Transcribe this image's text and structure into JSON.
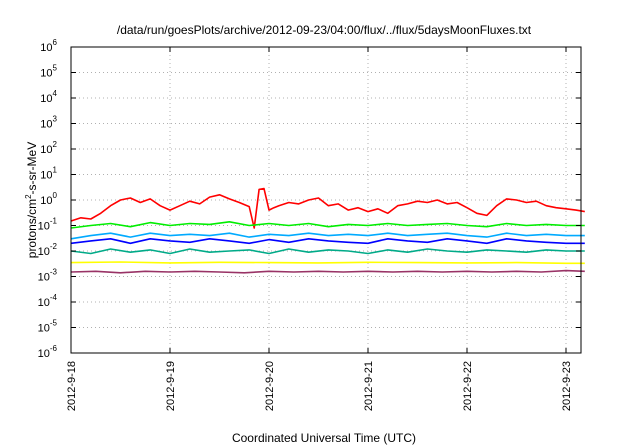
{
  "chart_data": {
    "type": "line",
    "title": "/data/run/goesPlots/archive/2012-09-23/04:00/flux/../flux/5daysMoonFluxes.txt",
    "xlabel": "Coordinated Universal Time (UTC)",
    "ylabel": "protons/cm2-s-sr-MeV",
    "ylabel_parts": {
      "before": "protons/cm",
      "sup": "2",
      "after": "-s-sr-MeV"
    },
    "y_scale": "log",
    "ylim": [
      1e-06,
      1000000.0
    ],
    "y_ticks": [
      {
        "value": 1e-06,
        "base": "10",
        "exp": "-6"
      },
      {
        "value": 1e-05,
        "base": "10",
        "exp": "-5"
      },
      {
        "value": 0.0001,
        "base": "10",
        "exp": "-4"
      },
      {
        "value": 0.001,
        "base": "10",
        "exp": "-3"
      },
      {
        "value": 0.01,
        "base": "10",
        "exp": "-2"
      },
      {
        "value": 0.1,
        "base": "10",
        "exp": "-1"
      },
      {
        "value": 1,
        "base": "10",
        "exp": "0"
      },
      {
        "value": 10,
        "base": "10",
        "exp": "1"
      },
      {
        "value": 100,
        "base": "10",
        "exp": "2"
      },
      {
        "value": 1000,
        "base": "10",
        "exp": "3"
      },
      {
        "value": 10000,
        "base": "10",
        "exp": "4"
      },
      {
        "value": 100000,
        "base": "10",
        "exp": "5"
      },
      {
        "value": 1000000,
        "base": "10",
        "exp": "6"
      }
    ],
    "x_ticks": [
      "2012-9-18",
      "2012-9-19",
      "2012-9-20",
      "2012-9-21",
      "2012-9-22",
      "2012-9-23"
    ],
    "xlim_days": [
      0,
      5.19
    ],
    "grid": true,
    "legend": "none",
    "series": [
      {
        "color": "#ff0000",
        "x": [
          0.0,
          0.1,
          0.2,
          0.3,
          0.4,
          0.5,
          0.6,
          0.7,
          0.8,
          0.9,
          1.0,
          1.1,
          1.2,
          1.3,
          1.4,
          1.5,
          1.6,
          1.7,
          1.8,
          1.85,
          1.9,
          1.95,
          2.0,
          2.05,
          2.1,
          2.2,
          2.3,
          2.4,
          2.5,
          2.6,
          2.7,
          2.8,
          2.9,
          3.0,
          3.1,
          3.2,
          3.3,
          3.4,
          3.5,
          3.6,
          3.7,
          3.8,
          3.9,
          4.0,
          4.1,
          4.2,
          4.3,
          4.4,
          4.5,
          4.6,
          4.7,
          4.8,
          4.9,
          5.0,
          5.1,
          5.19
        ],
        "y": [
          0.15,
          0.2,
          0.18,
          0.3,
          0.6,
          1.0,
          1.2,
          0.8,
          1.1,
          0.6,
          0.4,
          0.6,
          0.9,
          0.7,
          1.3,
          1.6,
          1.1,
          0.8,
          0.55,
          0.08,
          2.6,
          2.8,
          0.4,
          0.5,
          0.6,
          0.8,
          0.7,
          1.0,
          1.2,
          0.6,
          0.7,
          0.4,
          0.5,
          0.35,
          0.45,
          0.3,
          0.6,
          0.7,
          0.9,
          0.8,
          1.0,
          0.7,
          0.8,
          0.5,
          0.3,
          0.25,
          0.6,
          1.1,
          1.0,
          0.8,
          0.9,
          0.6,
          0.5,
          0.45,
          0.4,
          0.35
        ]
      },
      {
        "color": "#00ee00",
        "x": [
          0.0,
          0.2,
          0.4,
          0.6,
          0.8,
          1.0,
          1.2,
          1.4,
          1.6,
          1.8,
          2.0,
          2.2,
          2.4,
          2.6,
          2.8,
          3.0,
          3.2,
          3.4,
          3.6,
          3.8,
          4.0,
          4.2,
          4.4,
          4.6,
          4.8,
          5.0,
          5.19
        ],
        "y": [
          0.08,
          0.1,
          0.12,
          0.09,
          0.13,
          0.1,
          0.12,
          0.11,
          0.14,
          0.1,
          0.12,
          0.1,
          0.12,
          0.09,
          0.11,
          0.1,
          0.12,
          0.1,
          0.11,
          0.12,
          0.1,
          0.09,
          0.12,
          0.1,
          0.11,
          0.1,
          0.1
        ]
      },
      {
        "color": "#00aaff",
        "x": [
          0.0,
          0.2,
          0.4,
          0.6,
          0.8,
          1.0,
          1.2,
          1.4,
          1.6,
          1.8,
          2.0,
          2.2,
          2.4,
          2.6,
          2.8,
          3.0,
          3.2,
          3.4,
          3.6,
          3.8,
          4.0,
          4.2,
          4.4,
          4.6,
          4.8,
          5.0,
          5.19
        ],
        "y": [
          0.03,
          0.04,
          0.05,
          0.035,
          0.05,
          0.04,
          0.045,
          0.04,
          0.05,
          0.035,
          0.045,
          0.04,
          0.05,
          0.04,
          0.045,
          0.04,
          0.05,
          0.04,
          0.045,
          0.05,
          0.04,
          0.035,
          0.05,
          0.04,
          0.045,
          0.04,
          0.04
        ]
      },
      {
        "color": "#0000ff",
        "x": [
          0.0,
          0.2,
          0.4,
          0.6,
          0.8,
          1.0,
          1.2,
          1.4,
          1.6,
          1.8,
          2.0,
          2.2,
          2.4,
          2.6,
          2.8,
          3.0,
          3.2,
          3.4,
          3.6,
          3.8,
          4.0,
          4.2,
          4.4,
          4.6,
          4.8,
          5.0,
          5.19
        ],
        "y": [
          0.02,
          0.025,
          0.03,
          0.02,
          0.03,
          0.025,
          0.022,
          0.03,
          0.025,
          0.02,
          0.028,
          0.022,
          0.03,
          0.025,
          0.022,
          0.02,
          0.03,
          0.025,
          0.022,
          0.03,
          0.025,
          0.02,
          0.03,
          0.025,
          0.022,
          0.02,
          0.02
        ]
      },
      {
        "color": "#00aa88",
        "x": [
          0.0,
          0.2,
          0.4,
          0.6,
          0.8,
          1.0,
          1.2,
          1.4,
          1.6,
          1.8,
          2.0,
          2.2,
          2.4,
          2.6,
          2.8,
          3.0,
          3.2,
          3.4,
          3.6,
          3.8,
          4.0,
          4.2,
          4.4,
          4.6,
          4.8,
          5.0,
          5.19
        ],
        "y": [
          0.01,
          0.008,
          0.012,
          0.009,
          0.011,
          0.008,
          0.012,
          0.009,
          0.01,
          0.011,
          0.008,
          0.012,
          0.009,
          0.011,
          0.01,
          0.008,
          0.011,
          0.009,
          0.012,
          0.01,
          0.009,
          0.011,
          0.01,
          0.009,
          0.011,
          0.01,
          0.01
        ]
      },
      {
        "color": "#ffff00",
        "x": [
          0.0,
          0.5,
          1.0,
          1.5,
          2.0,
          2.5,
          3.0,
          3.5,
          4.0,
          4.5,
          5.0,
          5.19
        ],
        "y": [
          0.0035,
          0.0037,
          0.0034,
          0.0036,
          0.0035,
          0.0034,
          0.0036,
          0.0035,
          0.0034,
          0.0035,
          0.0033,
          0.0033
        ]
      },
      {
        "color": "#993366",
        "x": [
          0.0,
          0.25,
          0.5,
          0.75,
          1.0,
          1.25,
          1.5,
          1.75,
          2.0,
          2.25,
          2.5,
          2.75,
          3.0,
          3.25,
          3.5,
          3.75,
          4.0,
          4.25,
          4.5,
          4.75,
          5.0,
          5.19
        ],
        "y": [
          0.0015,
          0.0016,
          0.0014,
          0.0016,
          0.0015,
          0.0016,
          0.0015,
          0.0014,
          0.0016,
          0.0015,
          0.0016,
          0.0015,
          0.0016,
          0.0015,
          0.0016,
          0.0015,
          0.0016,
          0.0015,
          0.0016,
          0.0015,
          0.0017,
          0.0016
        ]
      }
    ]
  }
}
